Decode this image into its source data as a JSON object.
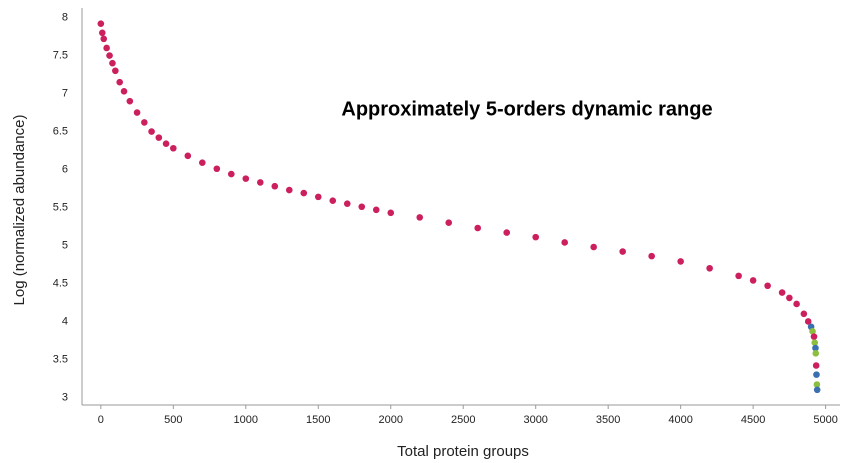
{
  "chart_data": {
    "type": "scatter",
    "annotation": "Approximately 5-orders dynamic range",
    "x_label": "Total protein groups",
    "y_label": "Log (normalized abundance)",
    "xlim": [
      -130,
      5120
    ],
    "ylim": [
      2.9,
      8.1
    ],
    "xticks": [
      0,
      500,
      1000,
      1500,
      2000,
      2500,
      3000,
      3500,
      4000,
      4500,
      5000
    ],
    "yticks": [
      3,
      3.5,
      4,
      4.5,
      5,
      5.5,
      6,
      6.5,
      7,
      7.5,
      8
    ],
    "grid": false,
    "x": [
      0,
      10,
      20,
      40,
      60,
      80,
      100,
      130,
      160,
      200,
      250,
      300,
      350,
      400,
      450,
      500,
      600,
      700,
      800,
      900,
      1000,
      1100,
      1200,
      1300,
      1400,
      1500,
      1600,
      1700,
      1800,
      1900,
      2000,
      2200,
      2400,
      2600,
      2800,
      3000,
      3200,
      3400,
      3600,
      3800,
      4000,
      4200,
      4400,
      4500,
      4600,
      4700,
      4750,
      4800,
      4850,
      4880,
      4900,
      4910,
      4920,
      4925,
      4930,
      4932,
      4935,
      4937,
      4940,
      4942
    ],
    "values": [
      7.92,
      7.8,
      7.72,
      7.6,
      7.5,
      7.4,
      7.3,
      7.15,
      7.03,
      6.9,
      6.75,
      6.62,
      6.5,
      6.42,
      6.34,
      6.28,
      6.18,
      6.09,
      6.01,
      5.94,
      5.88,
      5.83,
      5.78,
      5.73,
      5.69,
      5.64,
      5.59,
      5.55,
      5.51,
      5.47,
      5.43,
      5.37,
      5.3,
      5.23,
      5.17,
      5.11,
      5.04,
      4.98,
      4.92,
      4.86,
      4.79,
      4.7,
      4.6,
      4.54,
      4.47,
      4.38,
      4.31,
      4.23,
      4.1,
      4.0,
      3.93,
      3.87,
      3.8,
      3.72,
      3.65,
      3.58,
      3.42,
      3.3,
      3.17,
      3.1
    ],
    "point_colors": [
      "#cc1f5e",
      "#cc1f5e",
      "#cc1f5e",
      "#cc1f5e",
      "#cc1f5e",
      "#cc1f5e",
      "#cc1f5e",
      "#cc1f5e",
      "#cc1f5e",
      "#cc1f5e",
      "#cc1f5e",
      "#cc1f5e",
      "#cc1f5e",
      "#cc1f5e",
      "#cc1f5e",
      "#cc1f5e",
      "#cc1f5e",
      "#cc1f5e",
      "#cc1f5e",
      "#cc1f5e",
      "#cc1f5e",
      "#cc1f5e",
      "#cc1f5e",
      "#cc1f5e",
      "#cc1f5e",
      "#cc1f5e",
      "#cc1f5e",
      "#cc1f5e",
      "#cc1f5e",
      "#cc1f5e",
      "#cc1f5e",
      "#cc1f5e",
      "#cc1f5e",
      "#cc1f5e",
      "#cc1f5e",
      "#cc1f5e",
      "#cc1f5e",
      "#cc1f5e",
      "#cc1f5e",
      "#cc1f5e",
      "#cc1f5e",
      "#cc1f5e",
      "#cc1f5e",
      "#cc1f5e",
      "#cc1f5e",
      "#cc1f5e",
      "#cc1f5e",
      "#cc1f5e",
      "#cc1f5e",
      "#cc1f5e",
      "#3a6fb0",
      "#8cbf3f",
      "#cc1f5e",
      "#8cbf3f",
      "#3a6fb0",
      "#8cbf3f",
      "#cc1f5e",
      "#3a6fb0",
      "#8cbf3f",
      "#3a6fb0"
    ]
  }
}
